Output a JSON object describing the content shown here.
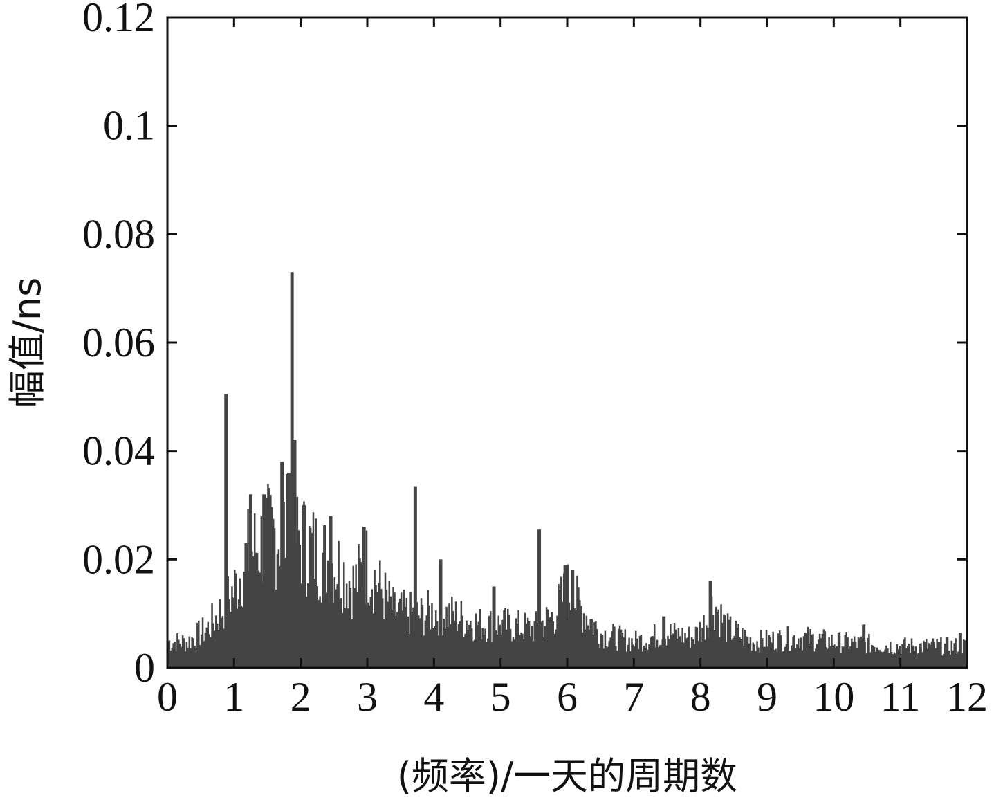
{
  "chart_data": {
    "type": "bar",
    "title": "",
    "xlabel": "(频率)/一天的周期数",
    "ylabel": "幅值/ns",
    "xlim": [
      0,
      12
    ],
    "ylim": [
      0,
      0.12
    ],
    "x_ticks": [
      "0",
      "1",
      "2",
      "3",
      "4",
      "5",
      "6",
      "7",
      "8",
      "9",
      "10",
      "11",
      "12"
    ],
    "y_ticks": [
      "0",
      "0.02",
      "0.04",
      "0.06",
      "0.08",
      "0.1",
      "0.12"
    ],
    "grid": false,
    "legend": "none",
    "color": "#444444",
    "envelope": [
      {
        "x": 0.0,
        "y": 0.006
      },
      {
        "x": 0.3,
        "y": 0.006
      },
      {
        "x": 0.6,
        "y": 0.009
      },
      {
        "x": 0.8,
        "y": 0.013
      },
      {
        "x": 1.0,
        "y": 0.018
      },
      {
        "x": 1.2,
        "y": 0.026
      },
      {
        "x": 1.5,
        "y": 0.03
      },
      {
        "x": 1.8,
        "y": 0.032
      },
      {
        "x": 2.0,
        "y": 0.029
      },
      {
        "x": 2.3,
        "y": 0.026
      },
      {
        "x": 2.6,
        "y": 0.023
      },
      {
        "x": 2.8,
        "y": 0.019
      },
      {
        "x": 3.0,
        "y": 0.024
      },
      {
        "x": 3.2,
        "y": 0.018
      },
      {
        "x": 3.4,
        "y": 0.013
      },
      {
        "x": 3.8,
        "y": 0.012
      },
      {
        "x": 4.0,
        "y": 0.013
      },
      {
        "x": 4.3,
        "y": 0.012
      },
      {
        "x": 4.7,
        "y": 0.01
      },
      {
        "x": 5.0,
        "y": 0.01
      },
      {
        "x": 5.5,
        "y": 0.009
      },
      {
        "x": 5.8,
        "y": 0.012
      },
      {
        "x": 6.0,
        "y": 0.018
      },
      {
        "x": 6.2,
        "y": 0.014
      },
      {
        "x": 6.5,
        "y": 0.008
      },
      {
        "x": 7.0,
        "y": 0.006
      },
      {
        "x": 7.5,
        "y": 0.008
      },
      {
        "x": 7.9,
        "y": 0.007
      },
      {
        "x": 8.1,
        "y": 0.011
      },
      {
        "x": 8.2,
        "y": 0.015
      },
      {
        "x": 8.4,
        "y": 0.009
      },
      {
        "x": 8.8,
        "y": 0.006
      },
      {
        "x": 9.5,
        "y": 0.007
      },
      {
        "x": 10.0,
        "y": 0.006
      },
      {
        "x": 11.0,
        "y": 0.005
      },
      {
        "x": 12.0,
        "y": 0.005
      }
    ],
    "peaks": [
      {
        "x": 0.88,
        "y": 0.0505
      },
      {
        "x": 1.25,
        "y": 0.032
      },
      {
        "x": 1.45,
        "y": 0.032
      },
      {
        "x": 1.72,
        "y": 0.038
      },
      {
        "x": 1.82,
        "y": 0.036
      },
      {
        "x": 1.87,
        "y": 0.073
      },
      {
        "x": 1.91,
        "y": 0.042
      },
      {
        "x": 2.05,
        "y": 0.03
      },
      {
        "x": 2.45,
        "y": 0.028
      },
      {
        "x": 2.95,
        "y": 0.026
      },
      {
        "x": 3.72,
        "y": 0.0335
      },
      {
        "x": 4.1,
        "y": 0.02
      },
      {
        "x": 4.9,
        "y": 0.015
      },
      {
        "x": 5.58,
        "y": 0.0255
      },
      {
        "x": 5.97,
        "y": 0.019
      },
      {
        "x": 6.08,
        "y": 0.018
      },
      {
        "x": 7.45,
        "y": 0.0095
      },
      {
        "x": 8.15,
        "y": 0.016
      },
      {
        "x": 10.45,
        "y": 0.008
      },
      {
        "x": 11.9,
        "y": 0.0065
      }
    ],
    "bar_width": 0.02
  }
}
